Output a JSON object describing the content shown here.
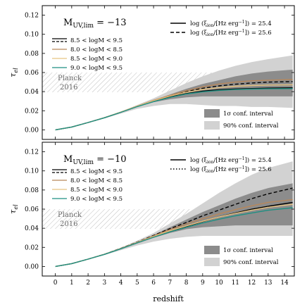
{
  "chart_data": {
    "type": "line",
    "xlabel": "redshift",
    "xlim": [
      -0.8,
      14.6
    ],
    "xticks": [
      0,
      1,
      2,
      3,
      4,
      5,
      6,
      7,
      8,
      9,
      10,
      11,
      12,
      13,
      14
    ],
    "ylim": [
      -0.01,
      0.13
    ],
    "yticks": [
      0.0,
      0.02,
      0.04,
      0.06,
      0.08,
      0.1,
      0.12
    ],
    "ytick_labels": [
      "0.00",
      "0.02",
      "0.04",
      "0.06",
      "0.08",
      "0.10",
      "0.12"
    ],
    "grid": false,
    "planck": {
      "label_line1": "Planck",
      "label_line2": "2016",
      "y_range": [
        0.04,
        0.066
      ]
    },
    "band_labels": {
      "sigma1": "1σ conf. interval",
      "pct90": "90% conf. interval"
    },
    "colors": {
      "bin1": "#000000",
      "bin2": "#b8875a",
      "bin3": "#e8c482",
      "bin4": "#1f8f82",
      "band_dark": "#8c8c8c",
      "band_light": "#d2d2d2",
      "hatch": "#b0b0b0"
    },
    "panels": [
      {
        "title_main": "M",
        "title_sub": "UV,lim",
        "title_value": " = −13",
        "ylabel": "τ",
        "ylabel_sub": "el",
        "style_legend": [
          {
            "text": "log (ξ",
            "sub": "ion",
            "rest": "/[Hz erg",
            "sup": "−1",
            "end": "]) = 25.4",
            "dash": "solid"
          },
          {
            "text": "log (ξ",
            "sub": "ion",
            "rest": "/[Hz erg",
            "sup": "−1",
            "end": "]) = 25.6",
            "dash": "dashed"
          }
        ],
        "mass_legend": [
          {
            "label": "8.5 < logM < 9.5",
            "color": "bin1",
            "double": true
          },
          {
            "label": "8.0 < logM < 8.5",
            "color": "bin2"
          },
          {
            "label": "8.5 < logM < 9.0",
            "color": "bin3"
          },
          {
            "label": "9.0 < logM < 9.5",
            "color": "bin4"
          }
        ],
        "band90": {
          "x": [
            0,
            1,
            2,
            3,
            4,
            5,
            6,
            7,
            8,
            9,
            10,
            11,
            12,
            13,
            14.5
          ],
          "lower": [
            0,
            0.003,
            0.0075,
            0.012,
            0.017,
            0.022,
            0.025,
            0.027,
            0.027,
            0.026,
            0.025,
            0.025,
            0.024,
            0.024,
            0.023
          ],
          "upper": [
            0,
            0.003,
            0.0078,
            0.013,
            0.019,
            0.026,
            0.033,
            0.041,
            0.049,
            0.056,
            0.062,
            0.067,
            0.071,
            0.074,
            0.078
          ]
        },
        "band1s": {
          "x": [
            0,
            1,
            2,
            3,
            4,
            5,
            6,
            7,
            8,
            9,
            10,
            11,
            12,
            13,
            14.5
          ],
          "lower": [
            0,
            0.003,
            0.0076,
            0.0125,
            0.018,
            0.024,
            0.029,
            0.032,
            0.034,
            0.035,
            0.035,
            0.035,
            0.035,
            0.035,
            0.035
          ],
          "upper": [
            0,
            0.003,
            0.0077,
            0.0128,
            0.0185,
            0.025,
            0.031,
            0.037,
            0.043,
            0.048,
            0.052,
            0.056,
            0.059,
            0.061,
            0.063
          ]
        },
        "series": [
          {
            "name": "8.5 < logM < 9.5, log ξion = 25.4",
            "color": "bin1",
            "dash": "solid",
            "x": [
              0,
              1,
              2,
              3,
              4,
              5,
              6,
              7,
              8,
              9,
              10,
              11,
              12,
              13,
              14.5
            ],
            "y": [
              0,
              0.003,
              0.0077,
              0.0127,
              0.0185,
              0.0245,
              0.03,
              0.0345,
              0.038,
              0.0405,
              0.042,
              0.0428,
              0.0433,
              0.0437,
              0.044
            ]
          },
          {
            "name": "8.5 < logM < 9.5, log ξion = 25.6",
            "color": "bin1",
            "dash": "dashed",
            "x": [
              0,
              1,
              2,
              3,
              4,
              5,
              6,
              7,
              8,
              9,
              10,
              11,
              12,
              13,
              14.5
            ],
            "y": [
              0,
              0.003,
              0.0077,
              0.0127,
              0.0185,
              0.0247,
              0.0305,
              0.0355,
              0.04,
              0.0435,
              0.046,
              0.0478,
              0.049,
              0.05,
              0.0505
            ]
          },
          {
            "name": "8.0 < logM < 8.5",
            "color": "bin2",
            "dash": "solid",
            "x": [
              0,
              1,
              2,
              3,
              4,
              5,
              6,
              7,
              8,
              9,
              10,
              11,
              12,
              13,
              14.5
            ],
            "y": [
              0,
              0.003,
              0.0077,
              0.0128,
              0.0187,
              0.025,
              0.031,
              0.036,
              0.041,
              0.045,
              0.048,
              0.05,
              0.0513,
              0.052,
              0.0527
            ]
          },
          {
            "name": "8.5 < logM < 9.0",
            "color": "bin3",
            "dash": "solid",
            "x": [
              0,
              1,
              2,
              3,
              4,
              5,
              6,
              7,
              8,
              9,
              10,
              11,
              12,
              13,
              14.5
            ],
            "y": [
              0,
              0.003,
              0.0077,
              0.0127,
              0.0186,
              0.0248,
              0.0305,
              0.0353,
              0.0393,
              0.0423,
              0.0443,
              0.0456,
              0.0464,
              0.0469,
              0.0472
            ]
          },
          {
            "name": "9.0 < logM < 9.5",
            "color": "bin4",
            "dash": "solid",
            "x": [
              0,
              1,
              2,
              3,
              4,
              5,
              6,
              7,
              8,
              9,
              10,
              11,
              12,
              13,
              14.5
            ],
            "y": [
              0,
              0.003,
              0.0077,
              0.0126,
              0.0184,
              0.0243,
              0.0296,
              0.034,
              0.0375,
              0.0398,
              0.0413,
              0.0422,
              0.0427,
              0.043,
              0.0432
            ]
          }
        ]
      },
      {
        "title_main": "M",
        "title_sub": "UV,lim",
        "title_value": " = −10",
        "ylabel": "τ",
        "ylabel_sub": "el",
        "style_legend": [
          {
            "text": "log (ξ",
            "sub": "ion",
            "rest": "/[Hz erg",
            "sup": "−1",
            "end": "]) = 25.4",
            "dash": "solid"
          },
          {
            "text": "log (ξ",
            "sub": "ion",
            "rest": "/[Hz erg",
            "sup": "−1",
            "end": "]) = 25.6",
            "dash": "dotted"
          }
        ],
        "mass_legend": [
          {
            "label": "8.5 < logM < 9.5",
            "color": "bin1",
            "double": true
          },
          {
            "label": "8.0 < logM < 8.5",
            "color": "bin2"
          },
          {
            "label": "8.5 < logM < 9.0",
            "color": "bin3"
          },
          {
            "label": "9.0 < logM < 9.5",
            "color": "bin4"
          }
        ],
        "band90": {
          "x": [
            0,
            1,
            2,
            3,
            4,
            5,
            6,
            7,
            8,
            9,
            10,
            11,
            12,
            13,
            14.5
          ],
          "lower": [
            0,
            0.003,
            0.0075,
            0.012,
            0.017,
            0.022,
            0.026,
            0.029,
            0.031,
            0.032,
            0.032,
            0.032,
            0.032,
            0.032,
            0.032
          ],
          "upper": [
            0,
            0.003,
            0.0078,
            0.013,
            0.0195,
            0.027,
            0.035,
            0.045,
            0.055,
            0.066,
            0.077,
            0.087,
            0.096,
            0.103,
            0.11
          ]
        },
        "band1s": {
          "x": [
            0,
            1,
            2,
            3,
            4,
            5,
            6,
            7,
            8,
            9,
            10,
            11,
            12,
            13,
            14.5
          ],
          "lower": [
            0,
            0.003,
            0.0076,
            0.0125,
            0.018,
            0.024,
            0.03,
            0.035,
            0.039,
            0.041,
            0.042,
            0.043,
            0.043,
            0.043,
            0.043
          ],
          "upper": [
            0,
            0.003,
            0.0077,
            0.0128,
            0.0188,
            0.0255,
            0.033,
            0.041,
            0.049,
            0.057,
            0.064,
            0.071,
            0.077,
            0.082,
            0.087
          ]
        },
        "series": [
          {
            "name": "8.5 < logM < 9.5, log ξion = 25.4",
            "color": "bin1",
            "dash": "solid",
            "x": [
              0,
              1,
              2,
              3,
              4,
              5,
              6,
              7,
              8,
              9,
              10,
              11,
              12,
              13,
              14.5
            ],
            "y": [
              0,
              0.003,
              0.0077,
              0.0127,
              0.0187,
              0.025,
              0.031,
              0.037,
              0.042,
              0.047,
              0.052,
              0.056,
              0.06,
              0.063,
              0.067
            ]
          },
          {
            "name": "8.5 < logM < 9.5, log ξion = 25.6",
            "color": "bin1",
            "dash": "dashed",
            "x": [
              0,
              1,
              2,
              3,
              4,
              5,
              6,
              7,
              8,
              9,
              10,
              11,
              12,
              13,
              14.5
            ],
            "y": [
              0,
              0.003,
              0.0077,
              0.0128,
              0.019,
              0.0255,
              0.0325,
              0.0395,
              0.046,
              0.053,
              0.059,
              0.065,
              0.071,
              0.076,
              0.082
            ]
          },
          {
            "name": "8.0 < logM < 8.5",
            "color": "bin2",
            "dash": "solid",
            "x": [
              0,
              1,
              2,
              3,
              4,
              5,
              6,
              7,
              8,
              9,
              10,
              11,
              12,
              13,
              14.5
            ],
            "y": [
              0,
              0.003,
              0.0077,
              0.0128,
              0.0189,
              0.0253,
              0.032,
              0.0385,
              0.0445,
              0.05,
              0.055,
              0.0595,
              0.0635,
              0.067,
              0.07
            ]
          },
          {
            "name": "8.5 < logM < 9.0",
            "color": "bin3",
            "dash": "solid",
            "x": [
              0,
              1,
              2,
              3,
              4,
              5,
              6,
              7,
              8,
              9,
              10,
              11,
              12,
              13,
              14.5
            ],
            "y": [
              0,
              0.003,
              0.0077,
              0.0127,
              0.0187,
              0.0251,
              0.0313,
              0.0373,
              0.0425,
              0.0473,
              0.0518,
              0.0555,
              0.059,
              0.062,
              0.065
            ]
          },
          {
            "name": "9.0 < logM < 9.5",
            "color": "bin4",
            "dash": "solid",
            "x": [
              0,
              1,
              2,
              3,
              4,
              5,
              6,
              7,
              8,
              9,
              10,
              11,
              12,
              13,
              14.5
            ],
            "y": [
              0,
              0.003,
              0.0077,
              0.0126,
              0.0185,
              0.0247,
              0.0306,
              0.0362,
              0.041,
              0.0455,
              0.0495,
              0.053,
              0.056,
              0.0588,
              0.0615
            ]
          }
        ]
      }
    ]
  }
}
